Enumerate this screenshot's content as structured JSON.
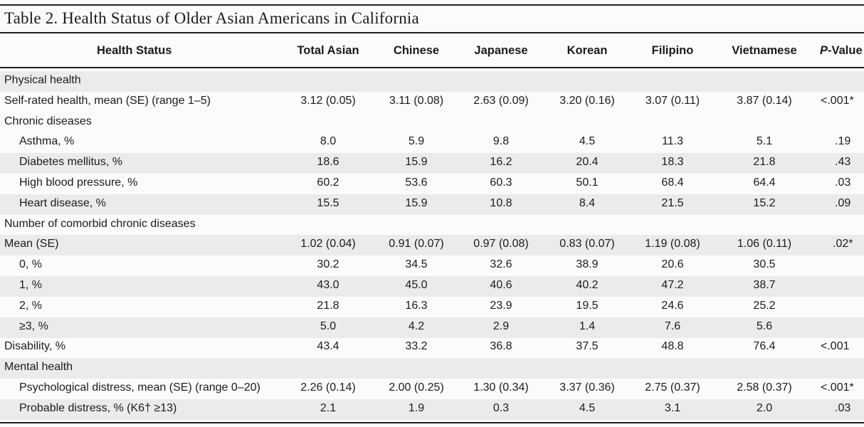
{
  "title": "Table 2.  Health Status of Older Asian Americans in California",
  "headers": {
    "status": "Health Status",
    "total": "Total Asian",
    "chinese": "Chinese",
    "japanese": "Japanese",
    "korean": "Korean",
    "filipino": "Filipino",
    "vietnamese": "Vietnamese",
    "p_italic": "P",
    "p_rest": "-Value"
  },
  "rows": [
    {
      "label": "Physical health",
      "type": "section"
    },
    {
      "label": "Self-rated health, mean (SE) (range 1–5)",
      "type": "main",
      "values": [
        "3.12 (0.05)",
        "3.11 (0.08)",
        "2.63 (0.09)",
        "3.20 (0.16)",
        "3.07 (0.11)",
        "3.87 (0.14)"
      ],
      "p": "<.001*"
    },
    {
      "label": "Chronic diseases",
      "type": "section"
    },
    {
      "label": "Asthma, %",
      "type": "sub",
      "values": [
        "8.0",
        "5.9",
        "9.8",
        "4.5",
        "11.3",
        "5.1"
      ],
      "p": ".19"
    },
    {
      "label": "Diabetes mellitus, %",
      "type": "sub",
      "values": [
        "18.6",
        "15.9",
        "16.2",
        "20.4",
        "18.3",
        "21.8"
      ],
      "p": ".43"
    },
    {
      "label": "High blood pressure, %",
      "type": "sub",
      "values": [
        "60.2",
        "53.6",
        "60.3",
        "50.1",
        "68.4",
        "64.4"
      ],
      "p": ".03"
    },
    {
      "label": "Heart disease, %",
      "type": "sub",
      "values": [
        "15.5",
        "15.9",
        "10.8",
        "8.4",
        "21.5",
        "15.2"
      ],
      "p": ".09"
    },
    {
      "label": "Number of comorbid chronic diseases",
      "type": "section"
    },
    {
      "label": "Mean (SE)",
      "type": "main",
      "values": [
        "1.02 (0.04)",
        "0.91 (0.07)",
        "0.97 (0.08)",
        "0.83 (0.07)",
        "1.19 (0.08)",
        "1.06 (0.11)"
      ],
      "p": ".02*"
    },
    {
      "label": "0, %",
      "type": "sub",
      "values": [
        "30.2",
        "34.5",
        "32.6",
        "38.9",
        "20.6",
        "30.5"
      ],
      "p": ""
    },
    {
      "label": "1, %",
      "type": "sub",
      "values": [
        "43.0",
        "45.0",
        "40.6",
        "40.2",
        "47.2",
        "38.7"
      ],
      "p": ""
    },
    {
      "label": "2, %",
      "type": "sub",
      "values": [
        "21.8",
        "16.3",
        "23.9",
        "19.5",
        "24.6",
        "25.2"
      ],
      "p": ""
    },
    {
      "label": "≥3, %",
      "type": "sub",
      "values": [
        "5.0",
        "4.2",
        "2.9",
        "1.4",
        "7.6",
        "5.6"
      ],
      "p": ""
    },
    {
      "label": "Disability, %",
      "type": "main",
      "values": [
        "43.4",
        "33.2",
        "36.8",
        "37.5",
        "48.8",
        "76.4"
      ],
      "p": "<.001"
    },
    {
      "label": "Mental health",
      "type": "section"
    },
    {
      "label": "Psychological distress, mean (SE) (range 0–20)",
      "type": "sub",
      "values": [
        "2.26 (0.14)",
        "2.00 (0.25)",
        "1.30 (0.34)",
        "3.37 (0.36)",
        "2.75 (0.37)",
        "2.58 (0.37)"
      ],
      "p": "<.001*"
    },
    {
      "label": "Probable distress, % (K6† ≥13)",
      "type": "sub",
      "values": [
        "2.1",
        "1.9",
        "0.3",
        "4.5",
        "3.1",
        "2.0"
      ],
      "p": ".03"
    }
  ]
}
